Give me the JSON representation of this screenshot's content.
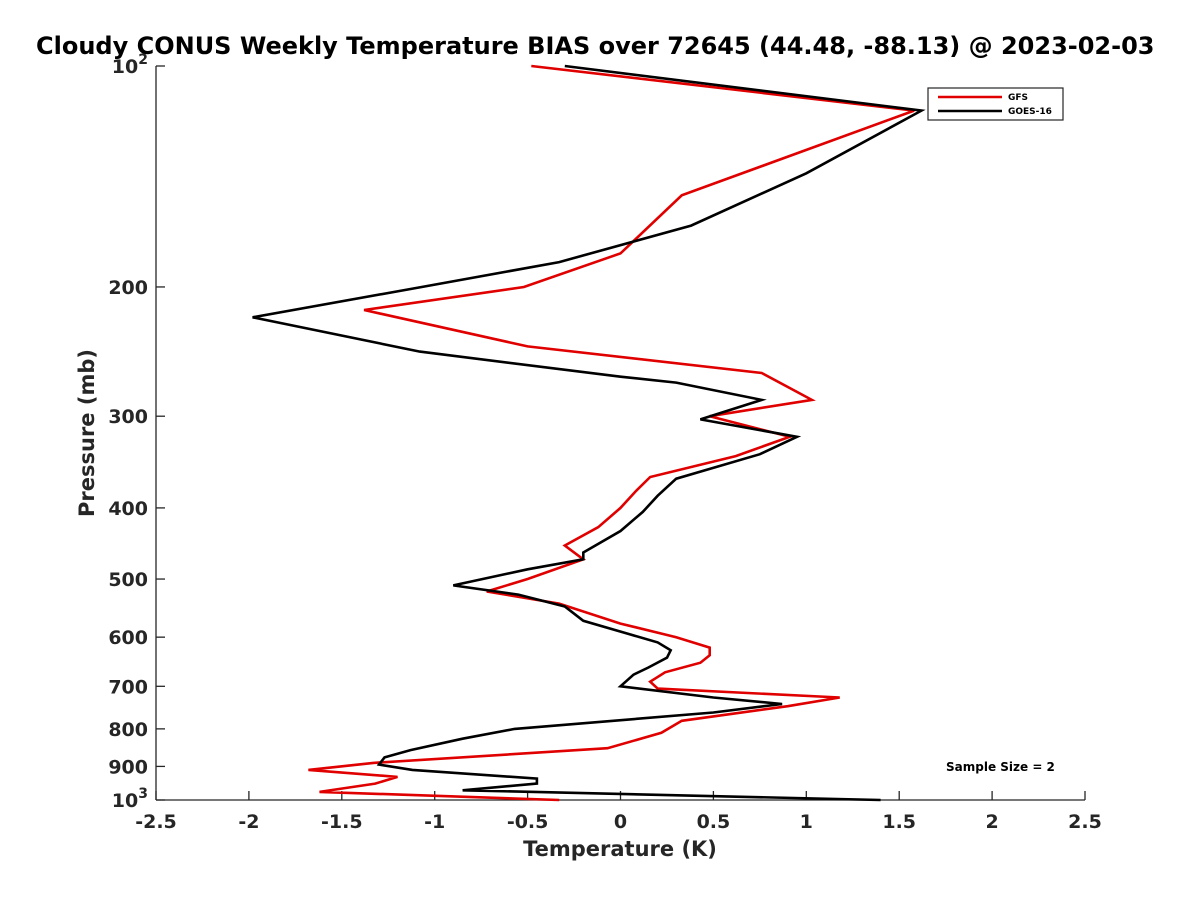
{
  "chart_data": {
    "type": "line",
    "title": "Cloudy CONUS Weekly Temperature BIAS over 72645 (44.48, -88.13) @ 2023-02-03",
    "xlabel": "Temperature (K)",
    "ylabel": "Pressure (mb)",
    "xlim": [
      -2.5,
      2.5
    ],
    "ylim": [
      100,
      1000
    ],
    "y_scale": "log",
    "y_reversed": true,
    "x_ticks": [
      -2.5,
      -2,
      -1.5,
      -1,
      -0.5,
      0,
      0.5,
      1,
      1.5,
      2,
      2.5
    ],
    "x_tick_labels": [
      "-2.5",
      "-2",
      "-1.5",
      "-1",
      "-0.5",
      "0",
      "0.5",
      "1",
      "1.5",
      "2",
      "2.5"
    ],
    "y_ticks": [
      100,
      200,
      300,
      400,
      500,
      600,
      700,
      800,
      900,
      1000
    ],
    "y_tick_labels": [
      {
        "base": "10",
        "exp": "2"
      },
      {
        "base": "200",
        "exp": ""
      },
      {
        "base": "300",
        "exp": ""
      },
      {
        "base": "400",
        "exp": ""
      },
      {
        "base": "500",
        "exp": ""
      },
      {
        "base": "600",
        "exp": ""
      },
      {
        "base": "700",
        "exp": ""
      },
      {
        "base": "800",
        "exp": ""
      },
      {
        "base": "900",
        "exp": ""
      },
      {
        "base": "10",
        "exp": "3"
      }
    ],
    "grid": false,
    "legend_position": "top-right",
    "annotation": "Sample Size = 2",
    "series": [
      {
        "name": "GFS",
        "color": "#e00000",
        "points": [
          [
            -0.48,
            100
          ],
          [
            1.58,
            115
          ],
          [
            0.33,
            150
          ],
          [
            0.0,
            180
          ],
          [
            -0.52,
            200
          ],
          [
            -1.38,
            215
          ],
          [
            -0.5,
            241
          ],
          [
            0.76,
            262
          ],
          [
            1.03,
            285
          ],
          [
            0.48,
            300
          ],
          [
            0.91,
            320
          ],
          [
            0.62,
            340
          ],
          [
            0.16,
            363
          ],
          [
            0.08,
            380
          ],
          [
            0.0,
            400
          ],
          [
            -0.12,
            425
          ],
          [
            -0.3,
            450
          ],
          [
            -0.2,
            470
          ],
          [
            -0.5,
            500
          ],
          [
            -0.72,
            520
          ],
          [
            -0.33,
            540
          ],
          [
            0.0,
            575
          ],
          [
            0.3,
            600
          ],
          [
            0.48,
            620
          ],
          [
            0.48,
            635
          ],
          [
            0.43,
            650
          ],
          [
            0.24,
            670
          ],
          [
            0.16,
            690
          ],
          [
            0.2,
            705
          ],
          [
            1.18,
            725
          ],
          [
            0.9,
            745
          ],
          [
            0.33,
            780
          ],
          [
            0.22,
            810
          ],
          [
            -0.07,
            850
          ],
          [
            -1.33,
            890
          ],
          [
            -1.68,
            910
          ],
          [
            -1.2,
            930
          ],
          [
            -1.32,
            950
          ],
          [
            -1.62,
            975
          ],
          [
            -0.33,
            1000
          ]
        ]
      },
      {
        "name": "GOES-16",
        "color": "#000000",
        "points": [
          [
            -0.3,
            100
          ],
          [
            1.62,
            115
          ],
          [
            1.0,
            140
          ],
          [
            0.38,
            165
          ],
          [
            -0.33,
            185
          ],
          [
            -1.07,
            200
          ],
          [
            -1.98,
            220
          ],
          [
            -1.08,
            245
          ],
          [
            0.0,
            265
          ],
          [
            0.3,
            270
          ],
          [
            0.76,
            285
          ],
          [
            0.43,
            303
          ],
          [
            0.95,
            320
          ],
          [
            0.75,
            338
          ],
          [
            0.3,
            365
          ],
          [
            0.2,
            385
          ],
          [
            0.12,
            405
          ],
          [
            0.0,
            430
          ],
          [
            -0.2,
            460
          ],
          [
            -0.2,
            470
          ],
          [
            -0.5,
            485
          ],
          [
            -0.9,
            510
          ],
          [
            -0.55,
            525
          ],
          [
            -0.3,
            545
          ],
          [
            -0.2,
            570
          ],
          [
            0.2,
            610
          ],
          [
            0.27,
            625
          ],
          [
            0.25,
            640
          ],
          [
            0.15,
            660
          ],
          [
            0.07,
            675
          ],
          [
            0.0,
            700
          ],
          [
            0.5,
            725
          ],
          [
            0.87,
            740
          ],
          [
            0.5,
            760
          ],
          [
            -0.57,
            800
          ],
          [
            -0.85,
            825
          ],
          [
            -1.13,
            855
          ],
          [
            -1.27,
            875
          ],
          [
            -1.3,
            895
          ],
          [
            -1.12,
            910
          ],
          [
            -0.45,
            935
          ],
          [
            -0.45,
            950
          ],
          [
            -0.85,
            970
          ],
          [
            1.4,
            1000
          ]
        ]
      }
    ]
  }
}
